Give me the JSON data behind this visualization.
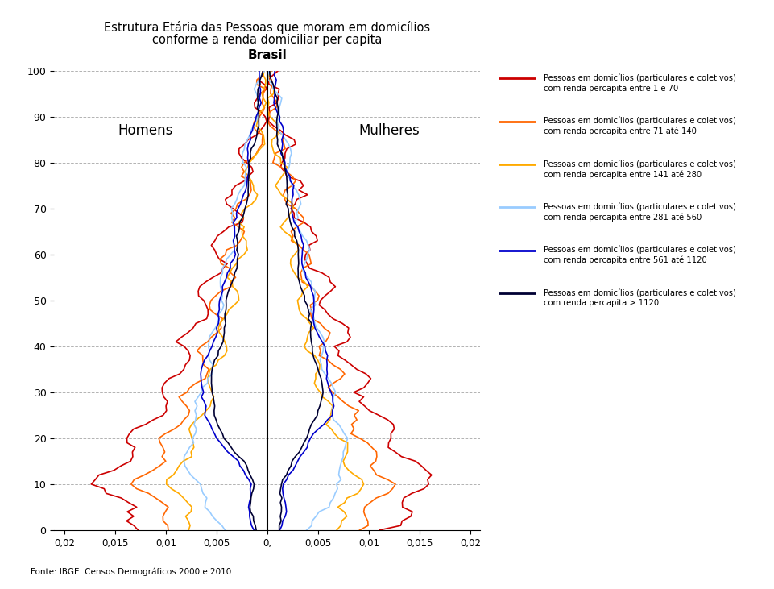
{
  "title_line1": "Estrutura Etária das Pessoas que moram em domicílios",
  "title_line2": "conforme a renda domiciliar per capita",
  "center_label": "Brasil",
  "left_label": "Homens",
  "right_label": "Mulheres",
  "source": "Fonte: IBGE. Censos Demográficos 2000 e 2010.",
  "xlim": 0.021,
  "ylim_max": 100,
  "xtick_vals": [
    -0.02,
    -0.015,
    -0.01,
    -0.005,
    0.0,
    0.005,
    0.01,
    0.015,
    0.02
  ],
  "xtick_labels": [
    "0,02",
    "0,015",
    "0,01",
    "0,005",
    "0,",
    "0,005",
    "0,01",
    "0,015",
    "0,02"
  ],
  "yticks": [
    0,
    10,
    20,
    30,
    40,
    50,
    60,
    70,
    80,
    90,
    100
  ],
  "background_color": "#ffffff",
  "colors": [
    "#cc0000",
    "#ff6600",
    "#ffaa00",
    "#99ccff",
    "#0000cc",
    "#000033"
  ],
  "legend_entries": [
    {
      "label1": "Pessoas em domicílios (particulares e coletivos)",
      "label2": "com renda percapita entre 1 e 70"
    },
    {
      "label1": "Pessoas em domicílios (particulares e coletivos)",
      "label2": "com renda percapita entre 71 até 140"
    },
    {
      "label1": "Pessoas em domicílios (particulares e coletivos)",
      "label2": "com renda percapita entre 141 até 280"
    },
    {
      "label1": "Pessoas em domicílios (particulares e coletivos)",
      "label2": "com renda percapita entre 281 até 560"
    },
    {
      "label1": "Pessoas em domicílios (particulares e coletivos)",
      "label2": "com renda percapita entre 561 até 1120"
    },
    {
      "label1": "Pessoas em domicílios (particulares e coletivos)",
      "label2": "com renda percapita > 1120"
    }
  ]
}
